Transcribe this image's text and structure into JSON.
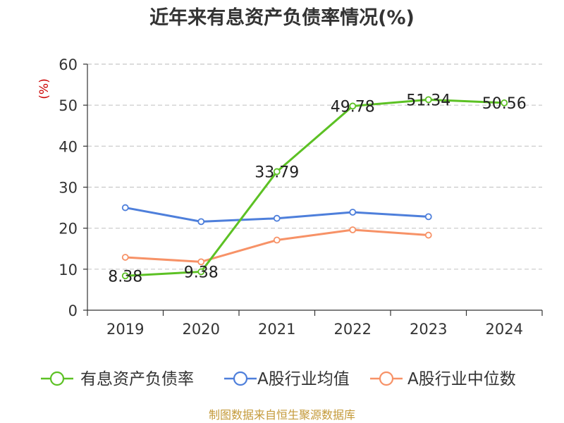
{
  "chart_data": {
    "type": "line",
    "title": "近年来有息资产负债率情况(%)",
    "ylabel": "(%)",
    "xlabel": "",
    "categories": [
      "2019",
      "2020",
      "2021",
      "2022",
      "2023",
      "2024"
    ],
    "ylim": [
      0,
      60
    ],
    "yticks": [
      "0",
      "10",
      "20",
      "30",
      "40",
      "50",
      "60"
    ],
    "grid": true,
    "legend_position": "bottom",
    "series": [
      {
        "name": "有息资产负债率",
        "color": "#5cc124",
        "values": [
          8.38,
          9.38,
          33.79,
          49.78,
          51.34,
          50.56
        ],
        "labels": [
          "8.38",
          "9.38",
          "33.79",
          "49.78",
          "51.34",
          "50.56"
        ]
      },
      {
        "name": "A股行业均值",
        "color": "#4e7fdb",
        "values": [
          25.0,
          21.6,
          22.4,
          23.9,
          22.8,
          null
        ]
      },
      {
        "name": "A股行业中位数",
        "color": "#f79267",
        "values": [
          12.9,
          11.8,
          17.1,
          19.6,
          18.3,
          null
        ]
      }
    ],
    "source": "制图数据来自恒生聚源数据库"
  }
}
